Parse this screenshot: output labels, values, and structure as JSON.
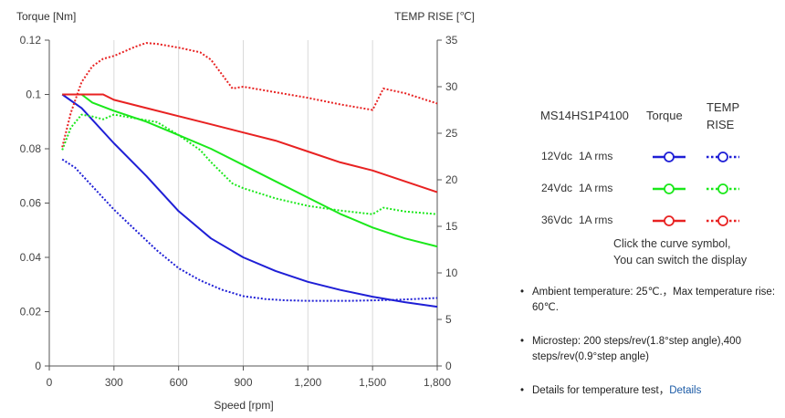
{
  "chart_data": {
    "type": "line",
    "y_left_label": "Torque  [Nm]",
    "y_right_label": "TEMP RISE [℃]",
    "xlabel": "Speed [rpm]",
    "xlim": [
      0,
      1800
    ],
    "ylim_left": [
      0,
      0.12
    ],
    "ylim_right": [
      0,
      35
    ],
    "x_ticks": [
      0,
      300,
      600,
      900,
      1200,
      1500,
      1800
    ],
    "x_tick_labels": [
      "0",
      "300",
      "600",
      "900",
      "1,200",
      "1,500",
      "1,800"
    ],
    "y_left_ticks": [
      0,
      0.02,
      0.04,
      0.06,
      0.08,
      0.1,
      0.12
    ],
    "y_left_tick_labels": [
      "0",
      "0.02",
      "0.04",
      "0.06",
      "0.08",
      "0.1",
      "0.12"
    ],
    "y_right_ticks": [
      0,
      5,
      10,
      15,
      20,
      25,
      30,
      35
    ],
    "y_right_tick_labels": [
      "0",
      "5",
      "10",
      "15",
      "20",
      "25",
      "30",
      "35"
    ],
    "grid": "vertical",
    "series": [
      {
        "group": "12Vdc",
        "kind": "torque",
        "color": "#1f1fd6",
        "style": "solid",
        "x": [
          60,
          150,
          300,
          450,
          600,
          750,
          900,
          1050,
          1200,
          1350,
          1500,
          1650,
          1800
        ],
        "y": [
          0.1,
          0.095,
          0.082,
          0.07,
          0.057,
          0.047,
          0.04,
          0.035,
          0.031,
          0.028,
          0.0255,
          0.0235,
          0.0218
        ]
      },
      {
        "group": "12Vdc",
        "kind": "temp",
        "color": "#1f1fd6",
        "style": "dotted",
        "x": [
          60,
          120,
          200,
          300,
          400,
          500,
          600,
          700,
          800,
          900,
          1000,
          1100,
          1200,
          1300,
          1400,
          1500,
          1600,
          1700,
          1800
        ],
        "y": [
          22.2,
          21.3,
          19.3,
          16.8,
          14.6,
          12.4,
          10.5,
          9.2,
          8.2,
          7.5,
          7.2,
          7.05,
          7.0,
          7.0,
          7.0,
          7.05,
          7.1,
          7.2,
          7.3
        ]
      },
      {
        "group": "24Vdc",
        "kind": "torque",
        "color": "#1be81b",
        "style": "solid",
        "x": [
          60,
          150,
          200,
          300,
          450,
          600,
          750,
          900,
          1050,
          1200,
          1350,
          1500,
          1650,
          1800
        ],
        "y": [
          0.1,
          0.1,
          0.097,
          0.094,
          0.09,
          0.085,
          0.08,
          0.074,
          0.068,
          0.062,
          0.056,
          0.051,
          0.047,
          0.044
        ]
      },
      {
        "group": "24Vdc",
        "kind": "temp",
        "color": "#1be81b",
        "style": "dotted",
        "x": [
          60,
          100,
          150,
          200,
          250,
          300,
          400,
          500,
          600,
          700,
          750,
          850,
          900,
          1050,
          1200,
          1350,
          1500,
          1550,
          1650,
          1800
        ],
        "y": [
          23.2,
          25.6,
          27.0,
          26.8,
          26.5,
          27.0,
          26.6,
          26.2,
          24.8,
          23.2,
          21.9,
          19.6,
          19.1,
          18.0,
          17.2,
          16.7,
          16.3,
          17.0,
          16.6,
          16.3
        ]
      },
      {
        "group": "36Vdc",
        "kind": "torque",
        "color": "#e82222",
        "style": "solid",
        "x": [
          60,
          150,
          250,
          300,
          450,
          600,
          750,
          900,
          1050,
          1200,
          1350,
          1500,
          1650,
          1800
        ],
        "y": [
          0.1,
          0.1,
          0.1,
          0.098,
          0.095,
          0.092,
          0.089,
          0.086,
          0.083,
          0.079,
          0.075,
          0.072,
          0.068,
          0.064
        ]
      },
      {
        "group": "36Vdc",
        "kind": "temp",
        "color": "#e82222",
        "style": "dotted",
        "x": [
          60,
          100,
          150,
          200,
          250,
          300,
          400,
          450,
          500,
          600,
          700,
          750,
          850,
          900,
          1050,
          1200,
          1350,
          1500,
          1550,
          1650,
          1800
        ],
        "y": [
          23.5,
          27.2,
          30.5,
          32.2,
          33.0,
          33.3,
          34.3,
          34.7,
          34.6,
          34.2,
          33.7,
          32.9,
          29.8,
          30.0,
          29.4,
          28.8,
          28.1,
          27.5,
          29.8,
          29.3,
          28.2
        ]
      }
    ]
  },
  "legend": {
    "model": "MS14HS1P4100",
    "torque_header": "Torque",
    "temp_header_line1": "TEMP",
    "temp_header_line2": "RISE",
    "rows": [
      {
        "voltage": "12Vdc",
        "current": "1A rms",
        "color": "#1f1fd6"
      },
      {
        "voltage": "24Vdc",
        "current": "1A rms",
        "color": "#1be81b"
      },
      {
        "voltage": "36Vdc",
        "current": "1A rms",
        "color": "#e82222"
      }
    ],
    "hint_line1": "Click the curve symbol,",
    "hint_line2": "You can switch the display"
  },
  "notes": {
    "ambient": "Ambient temperature: 25℃.，Max temperature rise: 60℃.",
    "microstep": "Microstep: 200 steps/rev(1.8°step angle),400 steps/rev(0.9°step angle)",
    "details_text": "Details for temperature test，",
    "details_link": "Details"
  }
}
